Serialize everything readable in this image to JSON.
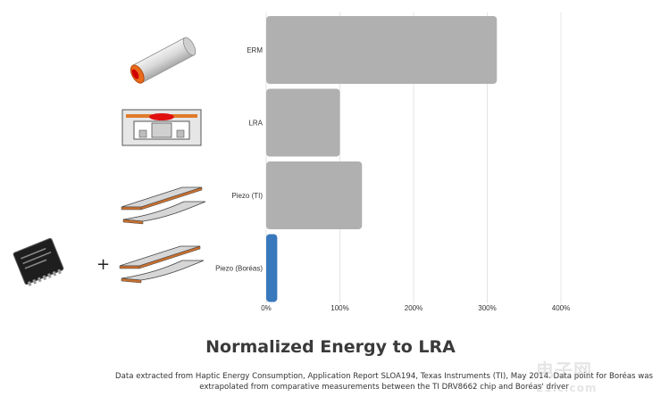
{
  "chart_data": {
    "type": "bar",
    "orientation": "horizontal",
    "title": "Normalized Energy to LRA",
    "categories": [
      "ERM",
      "LRA",
      "Piezo (TI)",
      "Piezo (Boréas)"
    ],
    "values": [
      313,
      100,
      130,
      15
    ],
    "unit": "%",
    "xlim": [
      0,
      400
    ],
    "xticks": [
      0,
      100,
      200,
      300,
      400
    ],
    "tick_labels": [
      "0%",
      "100%",
      "200%",
      "300%",
      "400%"
    ],
    "bar_colors": [
      "#b0b0b0",
      "#b0b0b0",
      "#b0b0b0",
      "#3a78bd"
    ],
    "grid": true,
    "legend": "none"
  },
  "caption": {
    "line1": "Data extracted from Haptic Energy Consumption, Application Report SLOA194, Texas Instruments (TI), May 2014. Data point for Boréas was",
    "line2": "extrapolated from comparative measurements between the TI DRV8662 chip and Boréas' driver"
  },
  "plus_sign": "+",
  "watermark": {
    "text": "电子网",
    "sub": "21ic.com"
  },
  "icons": {
    "erm": "erm-motor-icon",
    "lra": "lra-actuator-icon",
    "piezo_ti": "piezo-bender-icon",
    "piezo_boreas": "piezo-bender-icon",
    "chip": "driver-chip-icon"
  }
}
